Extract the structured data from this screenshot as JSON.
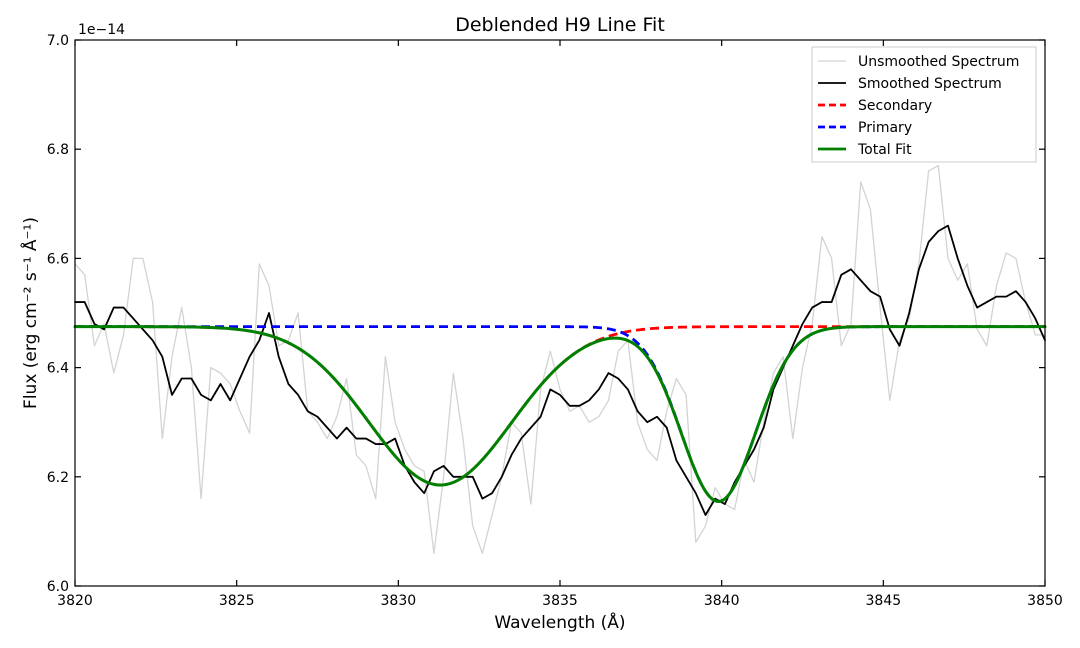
{
  "chart_data": {
    "type": "line",
    "title": "Deblended H9 Line Fit",
    "xlabel": "Wavelength (Å)",
    "ylabel": "Flux (erg cm⁻² s⁻¹ Å⁻¹)",
    "y_offset_label": "1e−14",
    "xlim": [
      3820,
      3850
    ],
    "ylim": [
      6.0,
      7.0
    ],
    "x_ticks": [
      3820,
      3825,
      3830,
      3835,
      3840,
      3845,
      3850
    ],
    "y_ticks": [
      6.0,
      6.2,
      6.4,
      6.6,
      6.8,
      7.0
    ],
    "x_tick_labels": [
      "3820",
      "3825",
      "3830",
      "3835",
      "3840",
      "3845",
      "3850"
    ],
    "y_tick_labels": [
      "6.0",
      "6.2",
      "6.4",
      "6.6",
      "6.8",
      "7.0"
    ],
    "legend_position": "top-right",
    "series": [
      {
        "name": "Unsmoothed Spectrum",
        "color": "#d3d3d3",
        "style": "solid",
        "x": [
          3820.0,
          3820.3,
          3820.6,
          3820.9,
          3821.2,
          3821.5,
          3821.8,
          3822.1,
          3822.4,
          3822.7,
          3823.0,
          3823.3,
          3823.6,
          3823.9,
          3824.2,
          3824.5,
          3824.8,
          3825.1,
          3825.4,
          3825.7,
          3826.0,
          3826.3,
          3826.6,
          3826.9,
          3827.2,
          3827.5,
          3827.8,
          3828.1,
          3828.4,
          3828.7,
          3829.0,
          3829.3,
          3829.6,
          3829.9,
          3830.2,
          3830.5,
          3830.8,
          3831.1,
          3831.4,
          3831.7,
          3832.0,
          3832.3,
          3832.6,
          3832.9,
          3833.2,
          3833.5,
          3833.8,
          3834.1,
          3834.4,
          3834.7,
          3835.0,
          3835.3,
          3835.6,
          3835.9,
          3836.2,
          3836.5,
          3836.8,
          3837.1,
          3837.4,
          3837.7,
          3838.0,
          3838.3,
          3838.6,
          3838.9,
          3839.2,
          3839.5,
          3839.8,
          3840.1,
          3840.4,
          3840.7,
          3841.0,
          3841.3,
          3841.6,
          3841.9,
          3842.2,
          3842.5,
          3842.8,
          3843.1,
          3843.4,
          3843.7,
          3844.0,
          3844.3,
          3844.6,
          3844.9,
          3845.2,
          3845.5,
          3845.8,
          3846.1,
          3846.4,
          3846.7,
          3847.0,
          3847.3,
          3847.6,
          3847.9,
          3848.2,
          3848.5,
          3848.8,
          3849.1,
          3849.4,
          3849.7,
          3850.0
        ],
        "y": [
          6.59,
          6.57,
          6.44,
          6.48,
          6.39,
          6.46,
          6.6,
          6.6,
          6.52,
          6.27,
          6.42,
          6.51,
          6.4,
          6.16,
          6.4,
          6.39,
          6.37,
          6.32,
          6.28,
          6.59,
          6.55,
          6.44,
          6.45,
          6.5,
          6.32,
          6.3,
          6.27,
          6.31,
          6.38,
          6.24,
          6.22,
          6.16,
          6.42,
          6.3,
          6.25,
          6.22,
          6.21,
          6.06,
          6.2,
          6.39,
          6.27,
          6.11,
          6.06,
          6.13,
          6.2,
          6.3,
          6.28,
          6.15,
          6.36,
          6.43,
          6.36,
          6.32,
          6.33,
          6.3,
          6.31,
          6.34,
          6.43,
          6.45,
          6.3,
          6.25,
          6.23,
          6.32,
          6.38,
          6.35,
          6.08,
          6.11,
          6.18,
          6.15,
          6.14,
          6.23,
          6.19,
          6.3,
          6.39,
          6.42,
          6.27,
          6.4,
          6.48,
          6.64,
          6.6,
          6.44,
          6.48,
          6.74,
          6.69,
          6.51,
          6.34,
          6.45,
          6.49,
          6.59,
          6.76,
          6.77,
          6.6,
          6.56,
          6.59,
          6.47,
          6.44,
          6.55,
          6.61,
          6.6,
          6.52,
          6.46,
          6.46
        ]
      },
      {
        "name": "Smoothed Spectrum",
        "color": "#000000",
        "style": "solid",
        "x": [
          3820.0,
          3820.3,
          3820.6,
          3820.9,
          3821.2,
          3821.5,
          3821.8,
          3822.1,
          3822.4,
          3822.7,
          3823.0,
          3823.3,
          3823.6,
          3823.9,
          3824.2,
          3824.5,
          3824.8,
          3825.1,
          3825.4,
          3825.7,
          3826.0,
          3826.3,
          3826.6,
          3826.9,
          3827.2,
          3827.5,
          3827.8,
          3828.1,
          3828.4,
          3828.7,
          3829.0,
          3829.3,
          3829.6,
          3829.9,
          3830.2,
          3830.5,
          3830.8,
          3831.1,
          3831.4,
          3831.7,
          3832.0,
          3832.3,
          3832.6,
          3832.9,
          3833.2,
          3833.5,
          3833.8,
          3834.1,
          3834.4,
          3834.7,
          3835.0,
          3835.3,
          3835.6,
          3835.9,
          3836.2,
          3836.5,
          3836.8,
          3837.1,
          3837.4,
          3837.7,
          3838.0,
          3838.3,
          3838.6,
          3838.9,
          3839.2,
          3839.5,
          3839.8,
          3840.1,
          3840.4,
          3840.7,
          3841.0,
          3841.3,
          3841.6,
          3841.9,
          3842.2,
          3842.5,
          3842.8,
          3843.1,
          3843.4,
          3843.7,
          3844.0,
          3844.3,
          3844.6,
          3844.9,
          3845.2,
          3845.5,
          3845.8,
          3846.1,
          3846.4,
          3846.7,
          3847.0,
          3847.3,
          3847.6,
          3847.9,
          3848.2,
          3848.5,
          3848.8,
          3849.1,
          3849.4,
          3849.7,
          3850.0
        ],
        "y": [
          6.52,
          6.52,
          6.48,
          6.47,
          6.51,
          6.51,
          6.49,
          6.47,
          6.45,
          6.42,
          6.35,
          6.38,
          6.38,
          6.35,
          6.34,
          6.37,
          6.34,
          6.38,
          6.42,
          6.45,
          6.5,
          6.42,
          6.37,
          6.35,
          6.32,
          6.31,
          6.29,
          6.27,
          6.29,
          6.27,
          6.27,
          6.26,
          6.26,
          6.27,
          6.22,
          6.19,
          6.17,
          6.21,
          6.22,
          6.2,
          6.2,
          6.2,
          6.16,
          6.17,
          6.2,
          6.24,
          6.27,
          6.29,
          6.31,
          6.36,
          6.35,
          6.33,
          6.33,
          6.34,
          6.36,
          6.39,
          6.38,
          6.36,
          6.32,
          6.3,
          6.31,
          6.29,
          6.23,
          6.2,
          6.17,
          6.13,
          6.16,
          6.15,
          6.19,
          6.22,
          6.25,
          6.29,
          6.36,
          6.4,
          6.44,
          6.48,
          6.51,
          6.52,
          6.52,
          6.57,
          6.58,
          6.56,
          6.54,
          6.53,
          6.47,
          6.44,
          6.5,
          6.58,
          6.63,
          6.65,
          6.66,
          6.6,
          6.55,
          6.51,
          6.52,
          6.53,
          6.53,
          6.54,
          6.52,
          6.49,
          6.45
        ]
      },
      {
        "name": "Secondary",
        "color": "#ff0000",
        "style": "dashed",
        "model": {
          "continuum": 6.475,
          "amplitude": 0.29,
          "center": 3831.3,
          "sigma": 2.2
        }
      },
      {
        "name": "Primary",
        "color": "#0000ff",
        "style": "dashed",
        "model": {
          "continuum": 6.475,
          "amplitude": 0.32,
          "center": 3839.9,
          "sigma": 1.15
        }
      },
      {
        "name": "Total Fit",
        "color": "#008000",
        "style": "solid",
        "model": {
          "continuum": 6.475,
          "components": [
            "Secondary",
            "Primary"
          ]
        }
      }
    ]
  }
}
